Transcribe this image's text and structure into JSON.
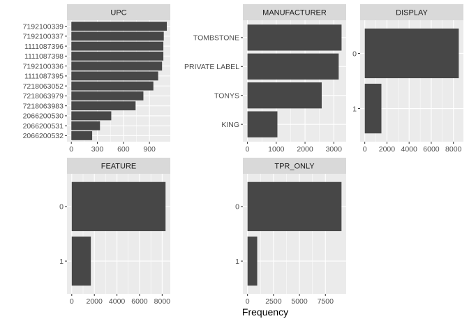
{
  "chart_data": [
    {
      "type": "bar",
      "orientation": "horizontal",
      "title": "UPC",
      "categories": [
        "7192100339",
        "7192100337",
        "1111087396",
        "1111087398",
        "7192100336",
        "1111087395",
        "7218063052",
        "7218063979",
        "7218063983",
        "2066200530",
        "2066200531",
        "2066200532"
      ],
      "values": [
        1100,
        1065,
        1060,
        1060,
        1045,
        1000,
        945,
        830,
        740,
        460,
        330,
        240
      ],
      "xlim": [
        -50,
        1140
      ],
      "xticks": [
        0,
        300,
        600,
        900
      ],
      "xtick_labels": [
        "0",
        "300",
        "600",
        "900"
      ]
    },
    {
      "type": "bar",
      "orientation": "horizontal",
      "title": "MANUFACTURER",
      "categories": [
        "TOMBSTONE",
        "PRIVATE LABEL",
        "TONYS",
        "KING"
      ],
      "values": [
        3270,
        3170,
        2580,
        1040
      ],
      "xlim": [
        -160,
        3430
      ],
      "xticks": [
        0,
        1000,
        2000,
        3000
      ],
      "xtick_labels": [
        "0",
        "1000",
        "2000",
        "3000"
      ]
    },
    {
      "type": "bar",
      "orientation": "horizontal",
      "title": "DISPLAY",
      "categories": [
        "0",
        "1"
      ],
      "values": [
        8480,
        1500
      ],
      "xlim": [
        -420,
        8900
      ],
      "xticks": [
        0,
        2000,
        4000,
        6000,
        8000
      ],
      "xtick_labels": [
        "0",
        "2000",
        "4000",
        "6000",
        "8000"
      ]
    },
    {
      "type": "bar",
      "orientation": "horizontal",
      "title": "FEATURE",
      "categories": [
        "0",
        "1"
      ],
      "values": [
        8300,
        1690
      ],
      "xlim": [
        -420,
        8720
      ],
      "xticks": [
        0,
        2000,
        4000,
        6000,
        8000
      ],
      "xtick_labels": [
        "0",
        "2000",
        "4000",
        "6000",
        "8000"
      ]
    },
    {
      "type": "bar",
      "orientation": "horizontal",
      "title": "TPR_ONLY",
      "categories": [
        "0",
        "1"
      ],
      "values": [
        9050,
        930
      ],
      "xlim": [
        -450,
        9500
      ],
      "xticks": [
        0,
        2500,
        5000,
        7500
      ],
      "xtick_labels": [
        "0",
        "2500",
        "5000",
        "7500"
      ]
    }
  ],
  "xlabel": "Frequency",
  "colors": {
    "panel_bg": "#EBEBEB",
    "grid": "#FFFFFF",
    "bar": "#474747",
    "strip_bg": "#D9D9D9",
    "text": "#4D4D4D"
  }
}
